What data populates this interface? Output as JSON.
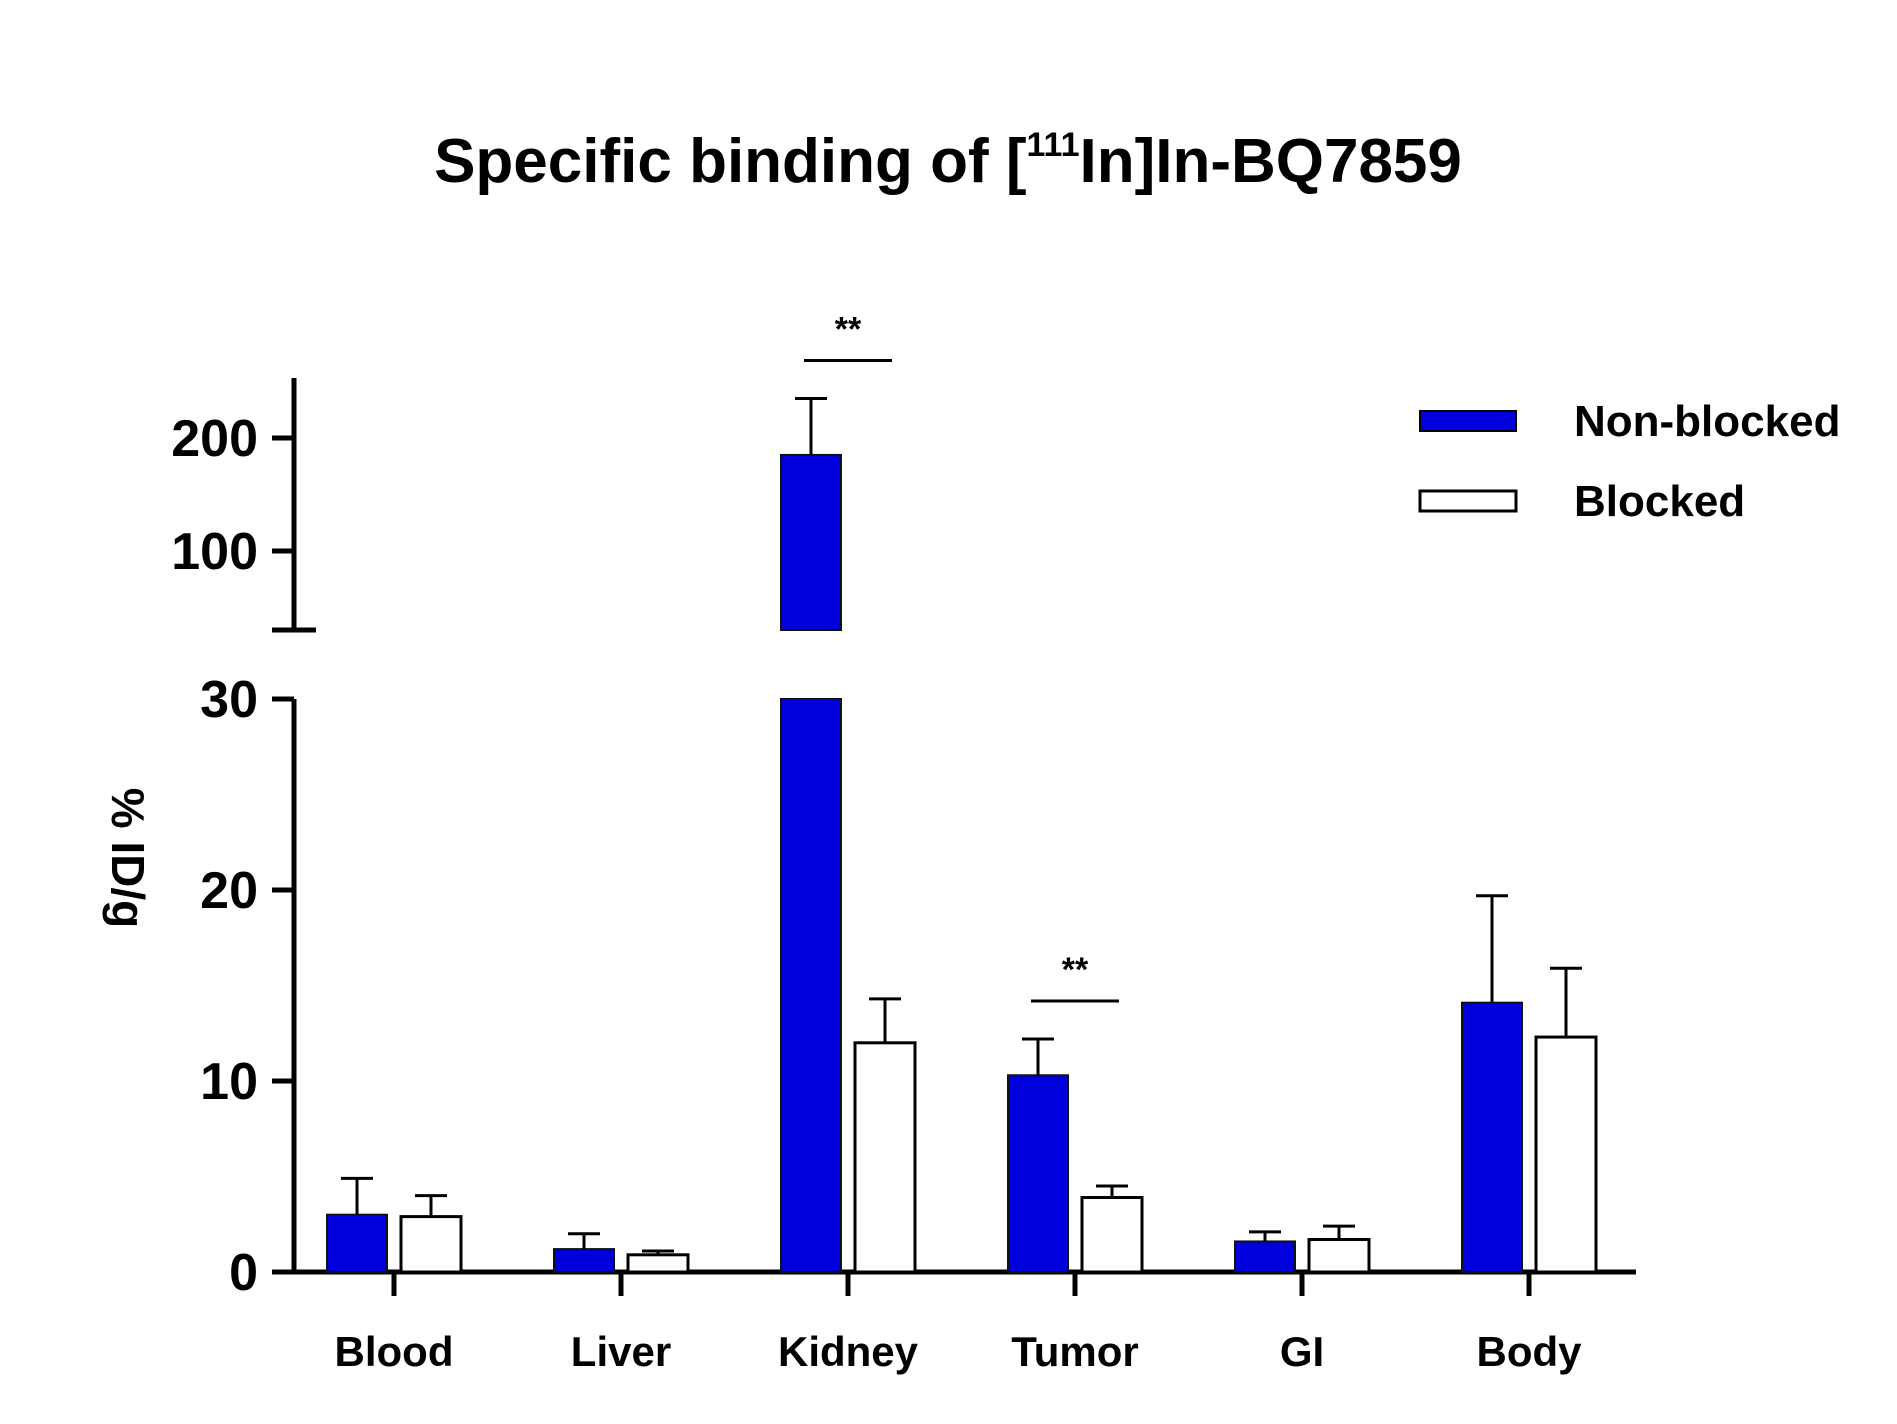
{
  "chart_data": {
    "type": "bar",
    "title": {
      "prefix": "Specific binding of [",
      "superscript": "111",
      "suffix": "In]In-BQ7859"
    },
    "xlabel": "",
    "ylabel": "% ID/g",
    "categories": [
      "Blood",
      "Liver",
      "Kidney",
      "Tumor",
      "GI",
      "Body"
    ],
    "series": [
      {
        "name": "Non-blocked",
        "color": "#0000dd",
        "values": [
          3.0,
          1.2,
          185,
          10.3,
          1.6,
          14.1
        ],
        "errors": [
          1.9,
          0.8,
          50,
          1.9,
          0.5,
          5.6
        ]
      },
      {
        "name": "Blocked",
        "color": "#ffffff",
        "values": [
          2.9,
          0.9,
          12.0,
          3.9,
          1.7,
          12.3
        ],
        "errors": [
          1.1,
          0.2,
          2.3,
          0.6,
          0.7,
          3.6
        ]
      }
    ],
    "y_axis": {
      "broken": true,
      "lower_segment": {
        "range": [
          0,
          30
        ],
        "ticks": [
          0,
          10,
          20,
          30
        ]
      },
      "upper_segment": {
        "range": [
          30,
          250
        ],
        "ticks": [
          100,
          200
        ]
      }
    },
    "significance": [
      {
        "category": "Kidney",
        "label": "**"
      },
      {
        "category": "Tumor",
        "label": "**"
      }
    ],
    "legend_position": "top-right",
    "grid": false
  }
}
